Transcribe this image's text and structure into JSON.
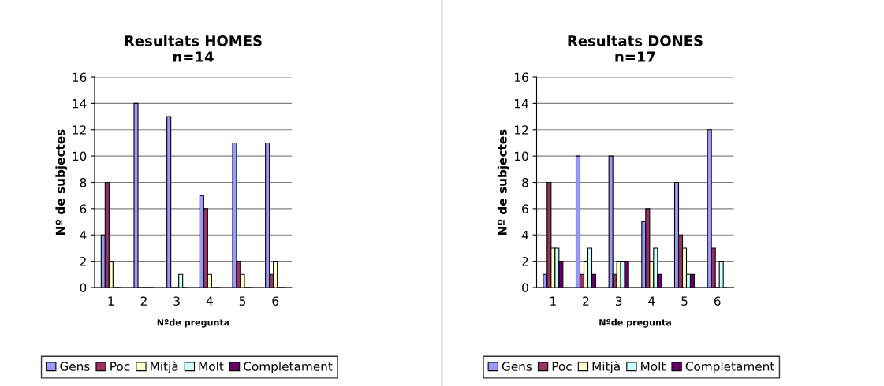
{
  "chart_data": [
    {
      "type": "bar",
      "title": "Resultats HOMES\nn=14",
      "xlabel": "Nºde pregunta",
      "ylabel": "Nº de subjectes",
      "categories": [
        "1",
        "2",
        "3",
        "4",
        "5",
        "6"
      ],
      "ylim": [
        0,
        16
      ],
      "yticks": [
        0,
        2,
        4,
        6,
        8,
        10,
        12,
        14,
        16
      ],
      "grid": "y",
      "legend": "bottom",
      "series": [
        {
          "name": "Gens",
          "color": "#9999ff",
          "values": [
            4,
            14,
            13,
            7,
            11,
            11
          ]
        },
        {
          "name": "Poc",
          "color": "#993366",
          "values": [
            8,
            0,
            0,
            6,
            2,
            1
          ]
        },
        {
          "name": "Mitjà",
          "color": "#ffffcc",
          "values": [
            2,
            0,
            0,
            1,
            1,
            2
          ]
        },
        {
          "name": "Molt",
          "color": "#ccffff",
          "values": [
            0,
            0,
            1,
            0,
            0,
            0
          ]
        },
        {
          "name": "Completament",
          "color": "#660066",
          "values": [
            0,
            0,
            0,
            0,
            0,
            0
          ]
        }
      ]
    },
    {
      "type": "bar",
      "title": "Resultats DONES\nn=17",
      "xlabel": "Nºde pregunta",
      "ylabel": "Nº de subjectes",
      "categories": [
        "1",
        "2",
        "3",
        "4",
        "5",
        "6"
      ],
      "ylim": [
        0,
        16
      ],
      "yticks": [
        0,
        2,
        4,
        6,
        8,
        10,
        12,
        14,
        16
      ],
      "grid": "y",
      "legend": "bottom",
      "series": [
        {
          "name": "Gens",
          "color": "#9999ff",
          "values": [
            1,
            10,
            10,
            5,
            8,
            12
          ]
        },
        {
          "name": "Poc",
          "color": "#993366",
          "values": [
            8,
            1,
            1,
            6,
            4,
            3
          ]
        },
        {
          "name": "Mitjà",
          "color": "#ffffcc",
          "values": [
            3,
            2,
            2,
            2,
            3,
            0
          ]
        },
        {
          "name": "Molt",
          "color": "#ccffff",
          "values": [
            3,
            3,
            2,
            3,
            1,
            2
          ]
        },
        {
          "name": "Completament",
          "color": "#660066",
          "values": [
            2,
            1,
            2,
            1,
            1,
            0
          ]
        }
      ]
    }
  ]
}
